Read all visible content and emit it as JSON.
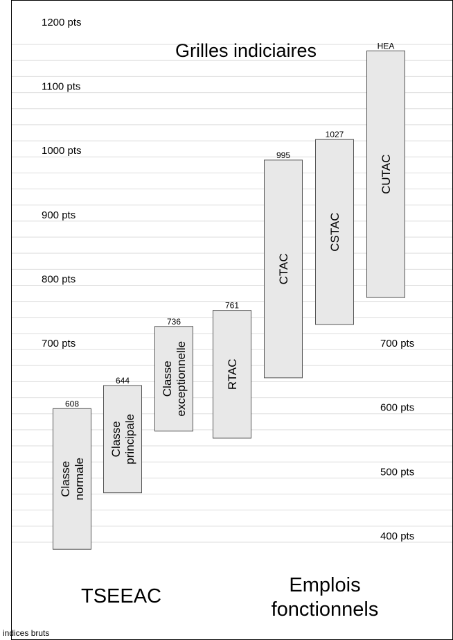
{
  "chart_data": {
    "type": "bar",
    "title": "Grilles indiciaires",
    "ylabel": "",
    "xlabel": "",
    "unit_label": "indices bruts",
    "ylim": [
      375,
      1205
    ],
    "left_ticks": [
      {
        "value": 1200,
        "label": "1200 pts"
      },
      {
        "value": 1100,
        "label": "1100 pts"
      },
      {
        "value": 1000,
        "label": "1000 pts"
      },
      {
        "value": 900,
        "label": "900 pts"
      },
      {
        "value": 800,
        "label": "800 pts"
      },
      {
        "value": 700,
        "label": "700 pts"
      }
    ],
    "right_ticks": [
      {
        "value": 700,
        "label": "700 pts"
      },
      {
        "value": 600,
        "label": "600 pts"
      },
      {
        "value": 500,
        "label": "500 pts"
      },
      {
        "value": 400,
        "label": "400 pts"
      }
    ],
    "gridlines": [
      1175,
      1150,
      1125,
      1100,
      1075,
      1050,
      1025,
      1000,
      975,
      950,
      925,
      900,
      875,
      850,
      825,
      800,
      775,
      750,
      725,
      700,
      675,
      650,
      625,
      600,
      575,
      550,
      525,
      500,
      475,
      450,
      425,
      400
    ],
    "bars": [
      {
        "label": [
          "Classe",
          "normale"
        ],
        "min": 389,
        "max": 608,
        "top_label": "608"
      },
      {
        "label": [
          "Classe",
          "principale"
        ],
        "min": 477,
        "max": 644,
        "top_label": "644"
      },
      {
        "label": [
          "Classe",
          "exceptionnelle"
        ],
        "min": 573,
        "max": 736,
        "top_label": "736"
      },
      {
        "label": [
          "RTAC"
        ],
        "min": 562,
        "max": 761,
        "top_label": "761"
      },
      {
        "label": [
          "CTAC"
        ],
        "min": 656,
        "max": 995,
        "top_label": "995"
      },
      {
        "label": [
          "CSTAC"
        ],
        "min": 739,
        "max": 1027,
        "top_label": "1027"
      },
      {
        "label": [
          "CUTAC"
        ],
        "min": 781,
        "max": 1165,
        "top_label": "HEA"
      }
    ],
    "groups": [
      {
        "label": [
          "TSEEAC"
        ]
      },
      {
        "label": [
          "Emplois",
          "fonctionnels"
        ]
      }
    ],
    "colors": {
      "bar_fill": "#e8e8e8",
      "bar_stroke": "#555555",
      "grid": "#dddddd",
      "frame": "#000000"
    }
  }
}
